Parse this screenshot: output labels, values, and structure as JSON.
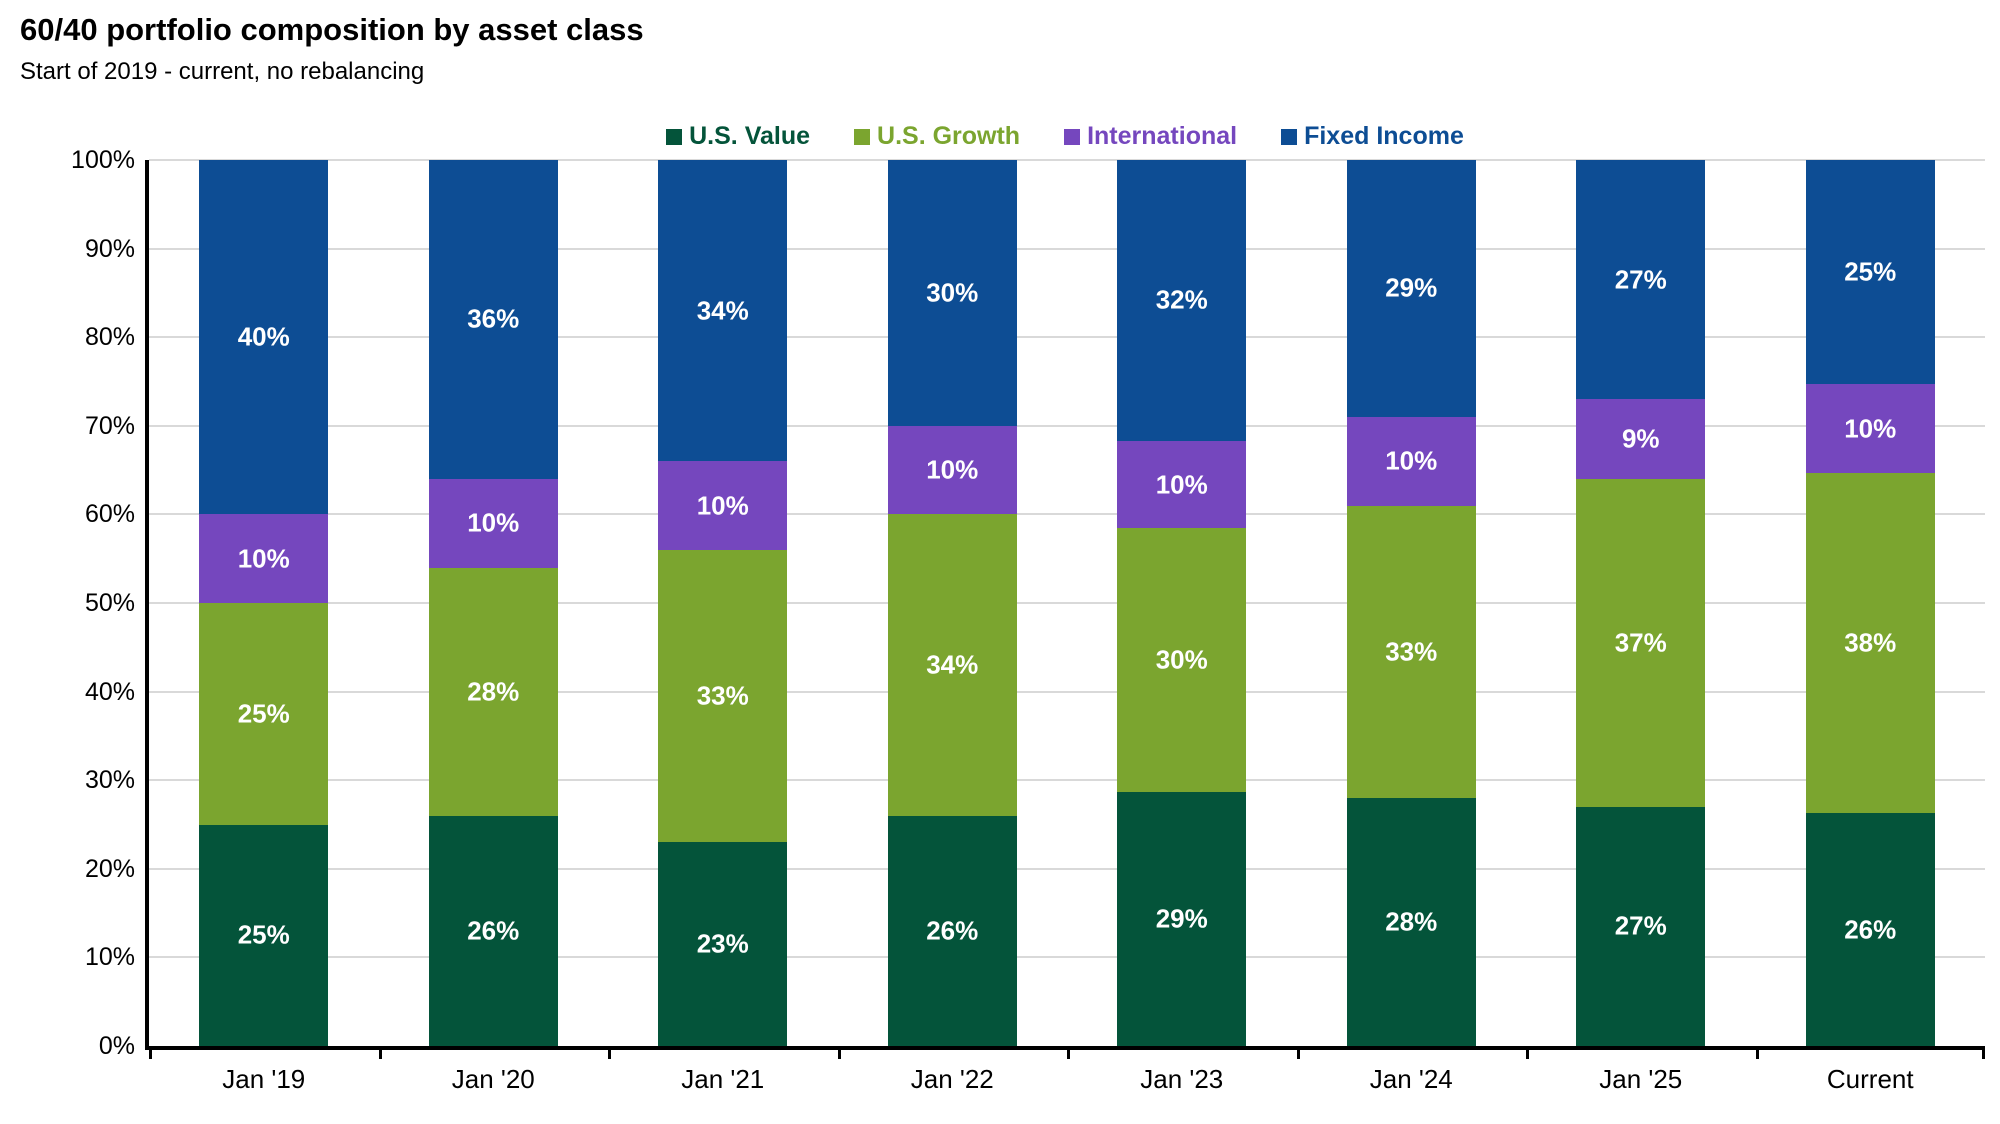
{
  "title": "60/40 portfolio composition by asset class",
  "subtitle": "Start of 2019 - current, no rebalancing",
  "colors": {
    "us_value": "#04543A",
    "us_growth": "#7BA52F",
    "international": "#7547BE",
    "fixed_income": "#0D4D94",
    "gridline": "#D9D9D9",
    "axis": "#000000",
    "segment_label": "#FFFFFF"
  },
  "chart_data": {
    "type": "bar",
    "stacked": true,
    "title": "60/40 portfolio composition by asset class",
    "subtitle": "Start of 2019 - current, no rebalancing",
    "xlabel": "",
    "ylabel": "",
    "ylim": [
      0,
      100
    ],
    "grid": true,
    "legend_position": "top",
    "y_ticks": [
      "0%",
      "10%",
      "20%",
      "30%",
      "40%",
      "50%",
      "60%",
      "70%",
      "80%",
      "90%",
      "100%"
    ],
    "categories": [
      "Jan '19",
      "Jan '20",
      "Jan '21",
      "Jan '22",
      "Jan '23",
      "Jan '24",
      "Jan '25",
      "Current"
    ],
    "series": [
      {
        "name": "U.S. Value",
        "color": "#04543A",
        "values": [
          25,
          26,
          23,
          26,
          29,
          28,
          27,
          26
        ],
        "labels": [
          "25%",
          "26%",
          "23%",
          "26%",
          "29%",
          "28%",
          "27%",
          "26%"
        ]
      },
      {
        "name": "U.S. Growth",
        "color": "#7BA52F",
        "values": [
          25,
          28,
          33,
          34,
          30,
          33,
          37,
          38
        ],
        "labels": [
          "25%",
          "28%",
          "33%",
          "34%",
          "30%",
          "33%",
          "37%",
          "38%"
        ]
      },
      {
        "name": "International",
        "color": "#7547BE",
        "values": [
          10,
          10,
          10,
          10,
          10,
          10,
          9,
          10
        ],
        "labels": [
          "10%",
          "10%",
          "10%",
          "10%",
          "10%",
          "10%",
          "9%",
          "10%"
        ]
      },
      {
        "name": "Fixed Income",
        "color": "#0D4D94",
        "values": [
          40,
          36,
          34,
          30,
          32,
          29,
          27,
          25
        ],
        "labels": [
          "40%",
          "36%",
          "34%",
          "30%",
          "32%",
          "29%",
          "27%",
          "25%"
        ]
      }
    ]
  }
}
